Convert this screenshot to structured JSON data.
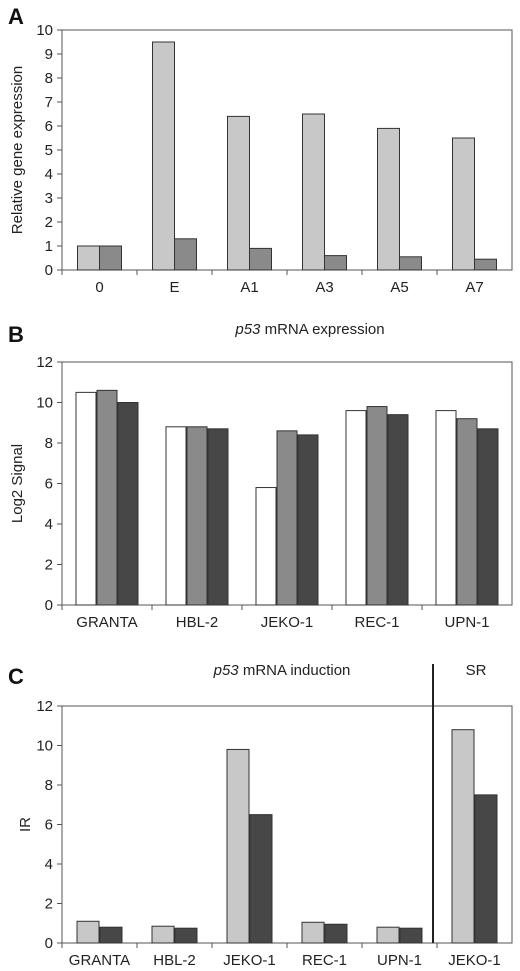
{
  "colors": {
    "light": "#c8c8c8",
    "mid": "#8a8a8a",
    "dark": "#474747",
    "white": "#ffffff",
    "axis": "#555555"
  },
  "chart_data": [
    {
      "panel": "A",
      "type": "bar",
      "title": "",
      "ylabel": "Relative gene expression",
      "ylim": [
        0,
        10
      ],
      "yticks": [
        0,
        1,
        2,
        3,
        4,
        5,
        6,
        7,
        8,
        9,
        10
      ],
      "categories": [
        "0",
        "E",
        "A1",
        "A3",
        "A5",
        "A7"
      ],
      "series": [
        {
          "color": "light",
          "values": [
            1.0,
            9.5,
            6.4,
            6.5,
            5.9,
            5.5
          ]
        },
        {
          "color": "mid",
          "values": [
            1.0,
            1.3,
            0.9,
            0.6,
            0.55,
            0.45
          ]
        }
      ]
    },
    {
      "panel": "B",
      "type": "bar",
      "title_italic": "p53",
      "title_rest": " mRNA expression",
      "ylabel": "Log2 Signal",
      "ylim": [
        0,
        12
      ],
      "yticks": [
        0,
        2,
        4,
        6,
        8,
        10,
        12
      ],
      "categories": [
        "GRANTA",
        "HBL-2",
        "JEKO-1",
        "REC-1",
        "UPN-1"
      ],
      "series": [
        {
          "color": "white",
          "values": [
            10.5,
            8.8,
            5.8,
            9.6,
            9.6
          ]
        },
        {
          "color": "mid",
          "values": [
            10.6,
            8.8,
            8.6,
            9.8,
            9.2
          ]
        },
        {
          "color": "dark",
          "values": [
            10.0,
            8.7,
            8.4,
            9.4,
            8.7
          ]
        }
      ]
    },
    {
      "panel": "C",
      "type": "bar",
      "title_italic": "p53",
      "title_rest": " mRNA induction",
      "extra_label": "SR",
      "ylabel": "IR",
      "ylim": [
        0,
        12
      ],
      "yticks": [
        0,
        2,
        4,
        6,
        8,
        10,
        12
      ],
      "categories": [
        "GRANTA",
        "HBL-2",
        "JEKO-1",
        "REC-1",
        "UPN-1",
        "JEKO-1"
      ],
      "series": [
        {
          "color": "light",
          "values": [
            1.1,
            0.85,
            9.8,
            1.05,
            0.8,
            10.8
          ]
        },
        {
          "color": "dark",
          "values": [
            0.8,
            0.75,
            6.5,
            0.95,
            0.75,
            7.5
          ]
        }
      ]
    }
  ]
}
